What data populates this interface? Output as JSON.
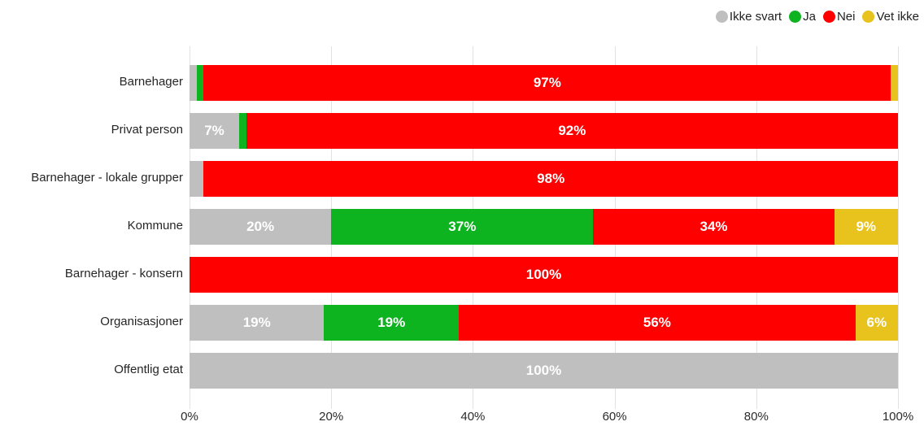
{
  "legend": {
    "items": [
      {
        "label": "Ikke svart",
        "color": "#bfbfbf"
      },
      {
        "label": "Ja",
        "color": "#0eb320"
      },
      {
        "label": "Nei",
        "color": "#fe0000"
      },
      {
        "label": "Vet ikke",
        "color": "#e8c21d"
      }
    ]
  },
  "chart_data": {
    "type": "bar",
    "orientation": "horizontal",
    "stacked": true,
    "title": "",
    "xlabel": "",
    "ylabel": "",
    "categories": [
      "Barnehager",
      "Privat person",
      "Barnehager - lokale grupper",
      "Kommune",
      "Barnehager - konsern",
      "Organisasjoner",
      "Offentlig etat"
    ],
    "series": [
      {
        "name": "Ikke svart",
        "color": "#bfbfbf",
        "values": [
          1,
          7,
          2,
          20,
          0,
          19,
          100
        ]
      },
      {
        "name": "Ja",
        "color": "#0eb320",
        "values": [
          1,
          1,
          0,
          37,
          0,
          19,
          0
        ]
      },
      {
        "name": "Nei",
        "color": "#fe0000",
        "values": [
          97,
          92,
          98,
          34,
          100,
          56,
          0
        ]
      },
      {
        "name": "Vet ikke",
        "color": "#e8c21d",
        "values": [
          1,
          0,
          0,
          9,
          0,
          6,
          0
        ]
      }
    ],
    "x_ticks": [
      "0%",
      "20%",
      "40%",
      "60%",
      "80%",
      "100%"
    ],
    "xlim": [
      0,
      100
    ],
    "data_label_format": "percent",
    "data_label_min_value": 5,
    "grid": true,
    "legend_position": "top-right"
  }
}
